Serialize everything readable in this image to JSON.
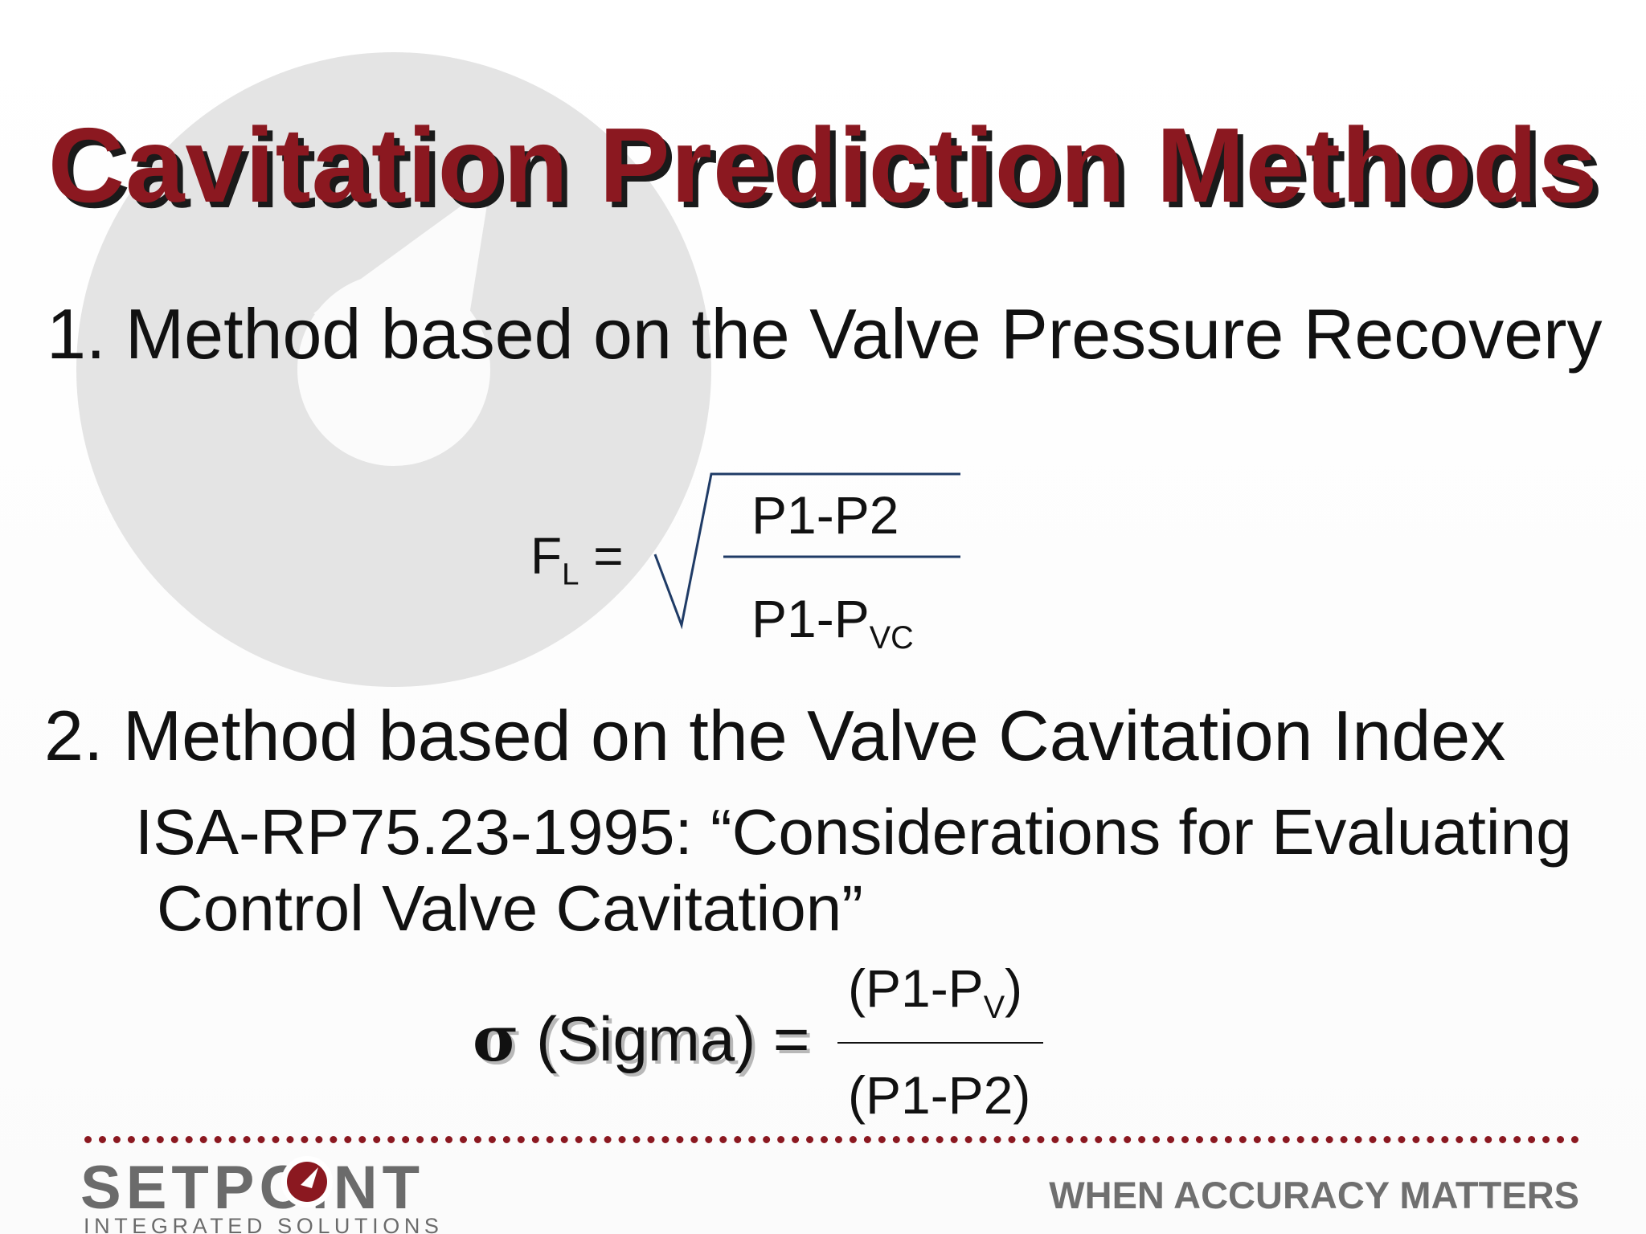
{
  "slide": {
    "title": "Cavitation Prediction Methods",
    "method1": "1. Method based on the Valve Pressure Recovery",
    "method2": "2. Method based on the Valve Cavitation Index",
    "standard_line1": "ISA-RP75.23-1995: “Considerations for Evaluating",
    "standard_line2": "Control Valve Cavitation”"
  },
  "fl_formula": {
    "lhs_symbol": "F",
    "lhs_sub": "L",
    "equals": " =",
    "numerator": "P1-P2",
    "denominator_main": "P1-P",
    "denominator_sub": "VC"
  },
  "sigma_formula": {
    "symbol": "σ",
    "label": " (Sigma) =",
    "numerator_main": "(P1-P",
    "numerator_sub": "V",
    "numerator_close": ")",
    "denominator": "(P1-P2)"
  },
  "footer": {
    "logo_text": "SETPOINT",
    "logo_subtitle": "INTEGRATED SOLUTIONS",
    "tagline": "WHEN ACCURACY MATTERS"
  },
  "colors": {
    "title": "#8b1820",
    "divider": "#8b1820",
    "watermark": "#e3e3e3",
    "formula_lines": "#1f3b66",
    "logo_gray": "#6b6b6b"
  },
  "icons": {
    "watermark": "gauge-watermark-icon",
    "logo_o": "gauge-dial-icon"
  }
}
